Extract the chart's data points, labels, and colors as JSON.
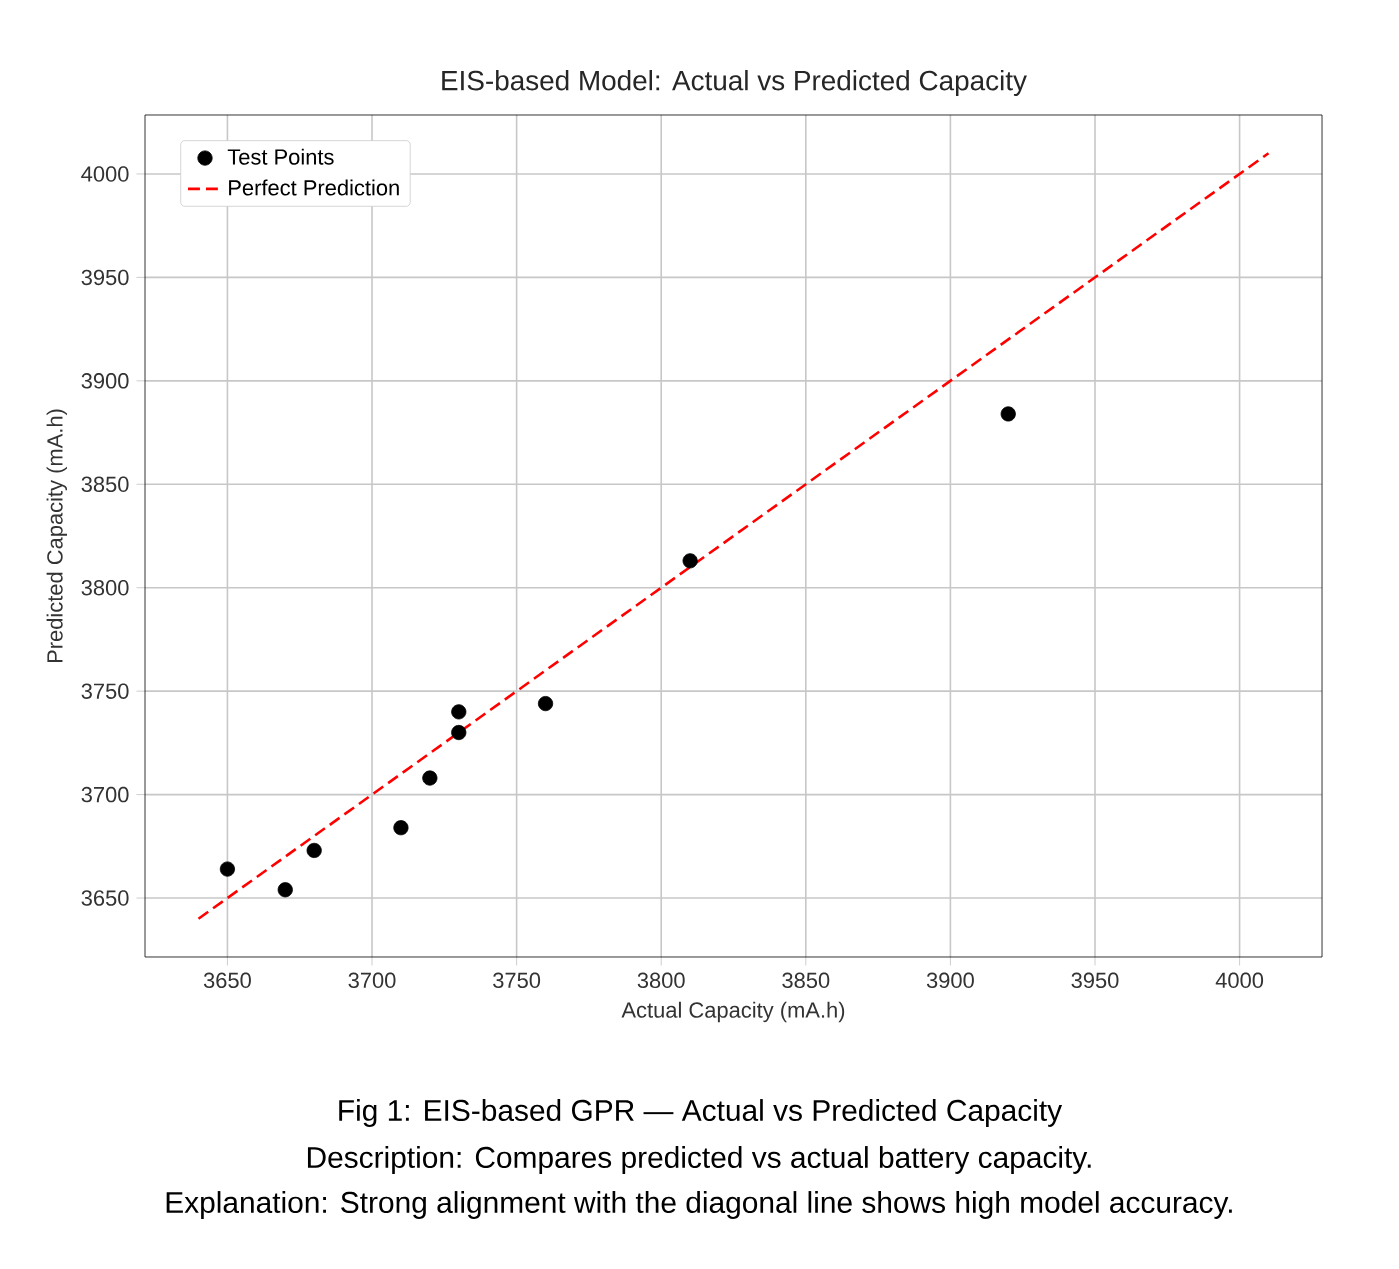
{
  "chart_data": {
    "type": "scatter",
    "title": "EIS-based Model: Actual vs Predicted Capacity",
    "xlabel": "Actual Capacity (mA.h)",
    "ylabel": "Predicted Capacity (mA.h)",
    "xlim": [
      3621.5,
      4028.5
    ],
    "ylim": [
      3621.5,
      4028.5
    ],
    "xticks": [
      3650,
      3700,
      3750,
      3800,
      3850,
      3900,
      3950,
      4000
    ],
    "yticks": [
      3650,
      3700,
      3750,
      3800,
      3850,
      3900,
      3950,
      4000
    ],
    "grid": true,
    "legend": "top left",
    "marker": "circle",
    "series": [
      {
        "name": "Test Points",
        "color": "#000000",
        "x": [
          3650,
          3670,
          3680,
          3710,
          3720,
          3730,
          3730,
          3760,
          3810,
          3920
        ],
        "values": [
          3664,
          3654,
          3673,
          3684,
          3708,
          3740,
          3730,
          3744,
          3813,
          3884
        ]
      },
      {
        "name": "Perfect Prediction",
        "type": "line",
        "color": "#ff0000",
        "line_style": "dashed",
        "marker": "none",
        "x": [
          3640,
          4010
        ],
        "values": [
          3640,
          4010
        ]
      }
    ],
    "annotations": [
      "Fig 1: EIS-based GPR — Actual vs Predicted Capacity",
      "Description: Compares predicted vs actual battery capacity.",
      "Explanation: Strong alignment with the diagonal line shows high model accuracy."
    ]
  }
}
